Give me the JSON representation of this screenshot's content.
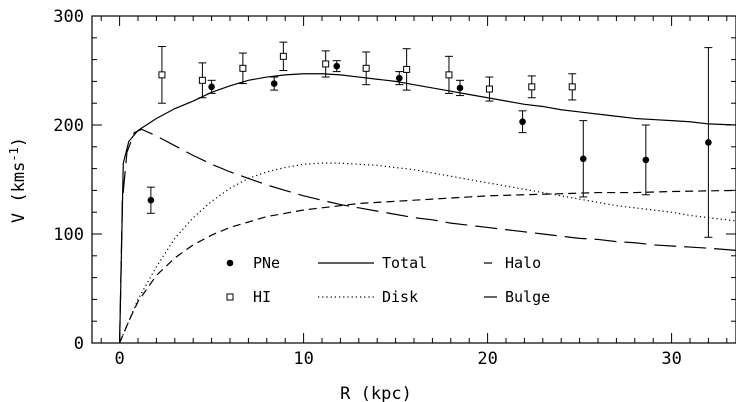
{
  "chart_data": {
    "type": "scatter",
    "xlabel": "R (kpc)",
    "ylabel_main": "V (kms",
    "ylabel_sup": "-1",
    "ylabel_close": ")",
    "xlim": [
      -1.5,
      33.5
    ],
    "ylim": [
      0,
      300
    ],
    "xticks": [
      0,
      10,
      20,
      30
    ],
    "yticks": [
      0,
      100,
      200,
      300
    ],
    "xtick_labels": [
      "0",
      "10",
      "20",
      "30"
    ],
    "ytick_labels": [
      "0",
      "100",
      "200",
      "300"
    ],
    "legend_placement": "bottom-center",
    "grid": false,
    "series": [
      {
        "name": "PNe",
        "kind": "points",
        "marker": "filled-circle",
        "points": [
          {
            "x": 1.7,
            "y": 131,
            "err": 12
          },
          {
            "x": 5.0,
            "y": 235,
            "err": 6
          },
          {
            "x": 8.4,
            "y": 238,
            "err": 6
          },
          {
            "x": 11.8,
            "y": 254,
            "err": 5
          },
          {
            "x": 15.2,
            "y": 243,
            "err": 6
          },
          {
            "x": 18.5,
            "y": 234,
            "err": 7
          },
          {
            "x": 21.9,
            "y": 203,
            "err": 10
          },
          {
            "x": 25.2,
            "y": 169,
            "err": 35
          },
          {
            "x": 28.6,
            "y": 168,
            "err": 32
          },
          {
            "x": 32.0,
            "y": 184,
            "err": 87
          }
        ]
      },
      {
        "name": "HI",
        "kind": "points",
        "marker": "open-square",
        "points": [
          {
            "x": 2.3,
            "y": 246,
            "err": 26
          },
          {
            "x": 4.5,
            "y": 241,
            "err": 16
          },
          {
            "x": 6.7,
            "y": 252,
            "err": 14
          },
          {
            "x": 8.9,
            "y": 263,
            "err": 13
          },
          {
            "x": 11.2,
            "y": 256,
            "err": 12
          },
          {
            "x": 13.4,
            "y": 252,
            "err": 15
          },
          {
            "x": 15.6,
            "y": 251,
            "err": 19
          },
          {
            "x": 17.9,
            "y": 246,
            "err": 17
          },
          {
            "x": 20.1,
            "y": 233,
            "err": 11
          },
          {
            "x": 22.4,
            "y": 235,
            "err": 10
          },
          {
            "x": 24.6,
            "y": 235,
            "err": 12
          }
        ]
      },
      {
        "name": "Total",
        "kind": "curve",
        "dash": "solid",
        "points": [
          [
            0,
            0
          ],
          [
            0.2,
            165
          ],
          [
            0.5,
            185
          ],
          [
            1,
            195
          ],
          [
            2,
            206
          ],
          [
            3,
            215
          ],
          [
            4,
            222
          ],
          [
            5,
            230
          ],
          [
            6,
            236
          ],
          [
            7,
            241
          ],
          [
            8,
            244
          ],
          [
            9,
            246
          ],
          [
            10,
            247
          ],
          [
            11,
            247
          ],
          [
            12,
            246
          ],
          [
            13,
            244
          ],
          [
            14,
            242
          ],
          [
            15,
            240
          ],
          [
            16,
            237
          ],
          [
            17,
            234
          ],
          [
            18,
            231
          ],
          [
            19,
            228
          ],
          [
            20,
            225
          ],
          [
            21,
            222
          ],
          [
            22,
            219
          ],
          [
            23,
            217
          ],
          [
            24,
            214
          ],
          [
            25,
            212
          ],
          [
            26,
            210
          ],
          [
            27,
            208
          ],
          [
            28,
            206
          ],
          [
            29,
            205
          ],
          [
            30,
            204
          ],
          [
            31,
            203
          ],
          [
            32,
            201
          ],
          [
            33.5,
            200
          ]
        ]
      },
      {
        "name": "Disk",
        "kind": "curve",
        "dash": "dotted",
        "points": [
          [
            0,
            0
          ],
          [
            0.5,
            20
          ],
          [
            1,
            40
          ],
          [
            2,
            70
          ],
          [
            3,
            96
          ],
          [
            4,
            115
          ],
          [
            5,
            130
          ],
          [
            6,
            142
          ],
          [
            7,
            151
          ],
          [
            8,
            157
          ],
          [
            9,
            161
          ],
          [
            10,
            164
          ],
          [
            11,
            165
          ],
          [
            12,
            165
          ],
          [
            13,
            164
          ],
          [
            14,
            163
          ],
          [
            15,
            161
          ],
          [
            16,
            159
          ],
          [
            17,
            156
          ],
          [
            18,
            153
          ],
          [
            19,
            150
          ],
          [
            20,
            147
          ],
          [
            21,
            144
          ],
          [
            22,
            141
          ],
          [
            23,
            138
          ],
          [
            24,
            135
          ],
          [
            25,
            132
          ],
          [
            26,
            129
          ],
          [
            27,
            126
          ],
          [
            28,
            124
          ],
          [
            29,
            122
          ],
          [
            30,
            120
          ],
          [
            31,
            117
          ],
          [
            32,
            115
          ],
          [
            33.5,
            112
          ]
        ]
      },
      {
        "name": "Halo",
        "kind": "curve",
        "dash": "dashed",
        "points": [
          [
            0,
            0
          ],
          [
            0.5,
            20
          ],
          [
            1,
            38
          ],
          [
            2,
            62
          ],
          [
            3,
            78
          ],
          [
            4,
            90
          ],
          [
            5,
            99
          ],
          [
            6,
            106
          ],
          [
            7,
            111
          ],
          [
            8,
            116
          ],
          [
            9,
            119
          ],
          [
            10,
            122
          ],
          [
            11,
            124
          ],
          [
            12,
            126
          ],
          [
            13,
            128
          ],
          [
            14,
            129
          ],
          [
            15,
            130
          ],
          [
            16,
            131
          ],
          [
            17,
            132
          ],
          [
            18,
            133
          ],
          [
            19,
            134
          ],
          [
            20,
            135
          ],
          [
            22,
            136
          ],
          [
            24,
            137
          ],
          [
            26,
            138
          ],
          [
            28,
            138
          ],
          [
            30,
            139
          ],
          [
            33.5,
            140
          ]
        ]
      },
      {
        "name": "Bulge",
        "kind": "curve",
        "dash": "long-dashed",
        "points": [
          [
            0,
            0
          ],
          [
            0.15,
            130
          ],
          [
            0.4,
            175
          ],
          [
            0.8,
            193
          ],
          [
            1.2,
            196
          ],
          [
            2,
            190
          ],
          [
            3,
            181
          ],
          [
            4,
            172
          ],
          [
            5,
            164
          ],
          [
            6,
            157
          ],
          [
            7,
            151
          ],
          [
            8,
            145
          ],
          [
            9,
            140
          ],
          [
            10,
            135
          ],
          [
            11,
            131
          ],
          [
            12,
            127
          ],
          [
            13,
            124
          ],
          [
            14,
            121
          ],
          [
            15,
            118
          ],
          [
            16,
            115
          ],
          [
            17,
            113
          ],
          [
            18,
            110
          ],
          [
            19,
            108
          ],
          [
            20,
            106
          ],
          [
            21,
            104
          ],
          [
            22,
            102
          ],
          [
            23,
            100
          ],
          [
            24,
            98
          ],
          [
            25,
            96
          ],
          [
            26,
            95
          ],
          [
            27,
            93
          ],
          [
            28,
            92
          ],
          [
            29,
            90
          ],
          [
            30,
            89
          ],
          [
            31,
            88
          ],
          [
            32,
            87
          ],
          [
            33.5,
            85
          ]
        ]
      }
    ]
  }
}
